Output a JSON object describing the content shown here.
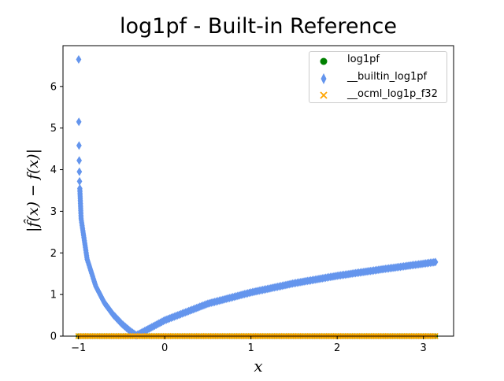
{
  "chart_data": {
    "type": "scatter",
    "title": "log1pf - Built-in Reference",
    "xlabel": "x",
    "ylabel": "|f̂(x) − f(x)|",
    "xlim": [
      -1.18,
      3.35
    ],
    "ylim": [
      0,
      6.98
    ],
    "x_ticks": [
      -1,
      0,
      1,
      2,
      3
    ],
    "y_ticks": [
      0,
      1,
      2,
      3,
      4,
      5,
      6
    ],
    "grid": false,
    "legend_position": "top-right",
    "series": [
      {
        "name": "log1pf",
        "marker": "circle",
        "color": "#008000",
        "description_points": [
          [
            -1.0,
            0
          ],
          [
            3.14,
            0
          ]
        ]
      },
      {
        "name": "__builtin_log1pf",
        "marker": "thin_diamond",
        "color": "#6495ed",
        "outliers": [
          [
            -0.998,
            6.65
          ],
          [
            -0.996,
            5.15
          ],
          [
            -0.994,
            4.58
          ],
          [
            -0.992,
            4.22
          ],
          [
            -0.99,
            3.95
          ],
          [
            -0.988,
            3.72
          ]
        ],
        "curve_points": [
          [
            -0.985,
            3.55
          ],
          [
            -0.97,
            2.82
          ],
          [
            -0.9,
            1.85
          ],
          [
            -0.8,
            1.2
          ],
          [
            -0.7,
            0.8
          ],
          [
            -0.6,
            0.52
          ],
          [
            -0.5,
            0.3
          ],
          [
            -0.4,
            0.12
          ],
          [
            -0.33,
            0.02
          ],
          [
            -0.3,
            0.05
          ],
          [
            -0.2,
            0.16
          ],
          [
            0.0,
            0.38
          ],
          [
            0.5,
            0.78
          ],
          [
            1.0,
            1.05
          ],
          [
            1.5,
            1.27
          ],
          [
            2.0,
            1.45
          ],
          [
            2.5,
            1.6
          ],
          [
            3.14,
            1.78
          ]
        ]
      },
      {
        "name": "__ocml_log1p_f32",
        "marker": "x",
        "color": "#ffa500",
        "description_points": [
          [
            -1.0,
            0
          ],
          [
            3.14,
            0
          ]
        ]
      }
    ]
  }
}
